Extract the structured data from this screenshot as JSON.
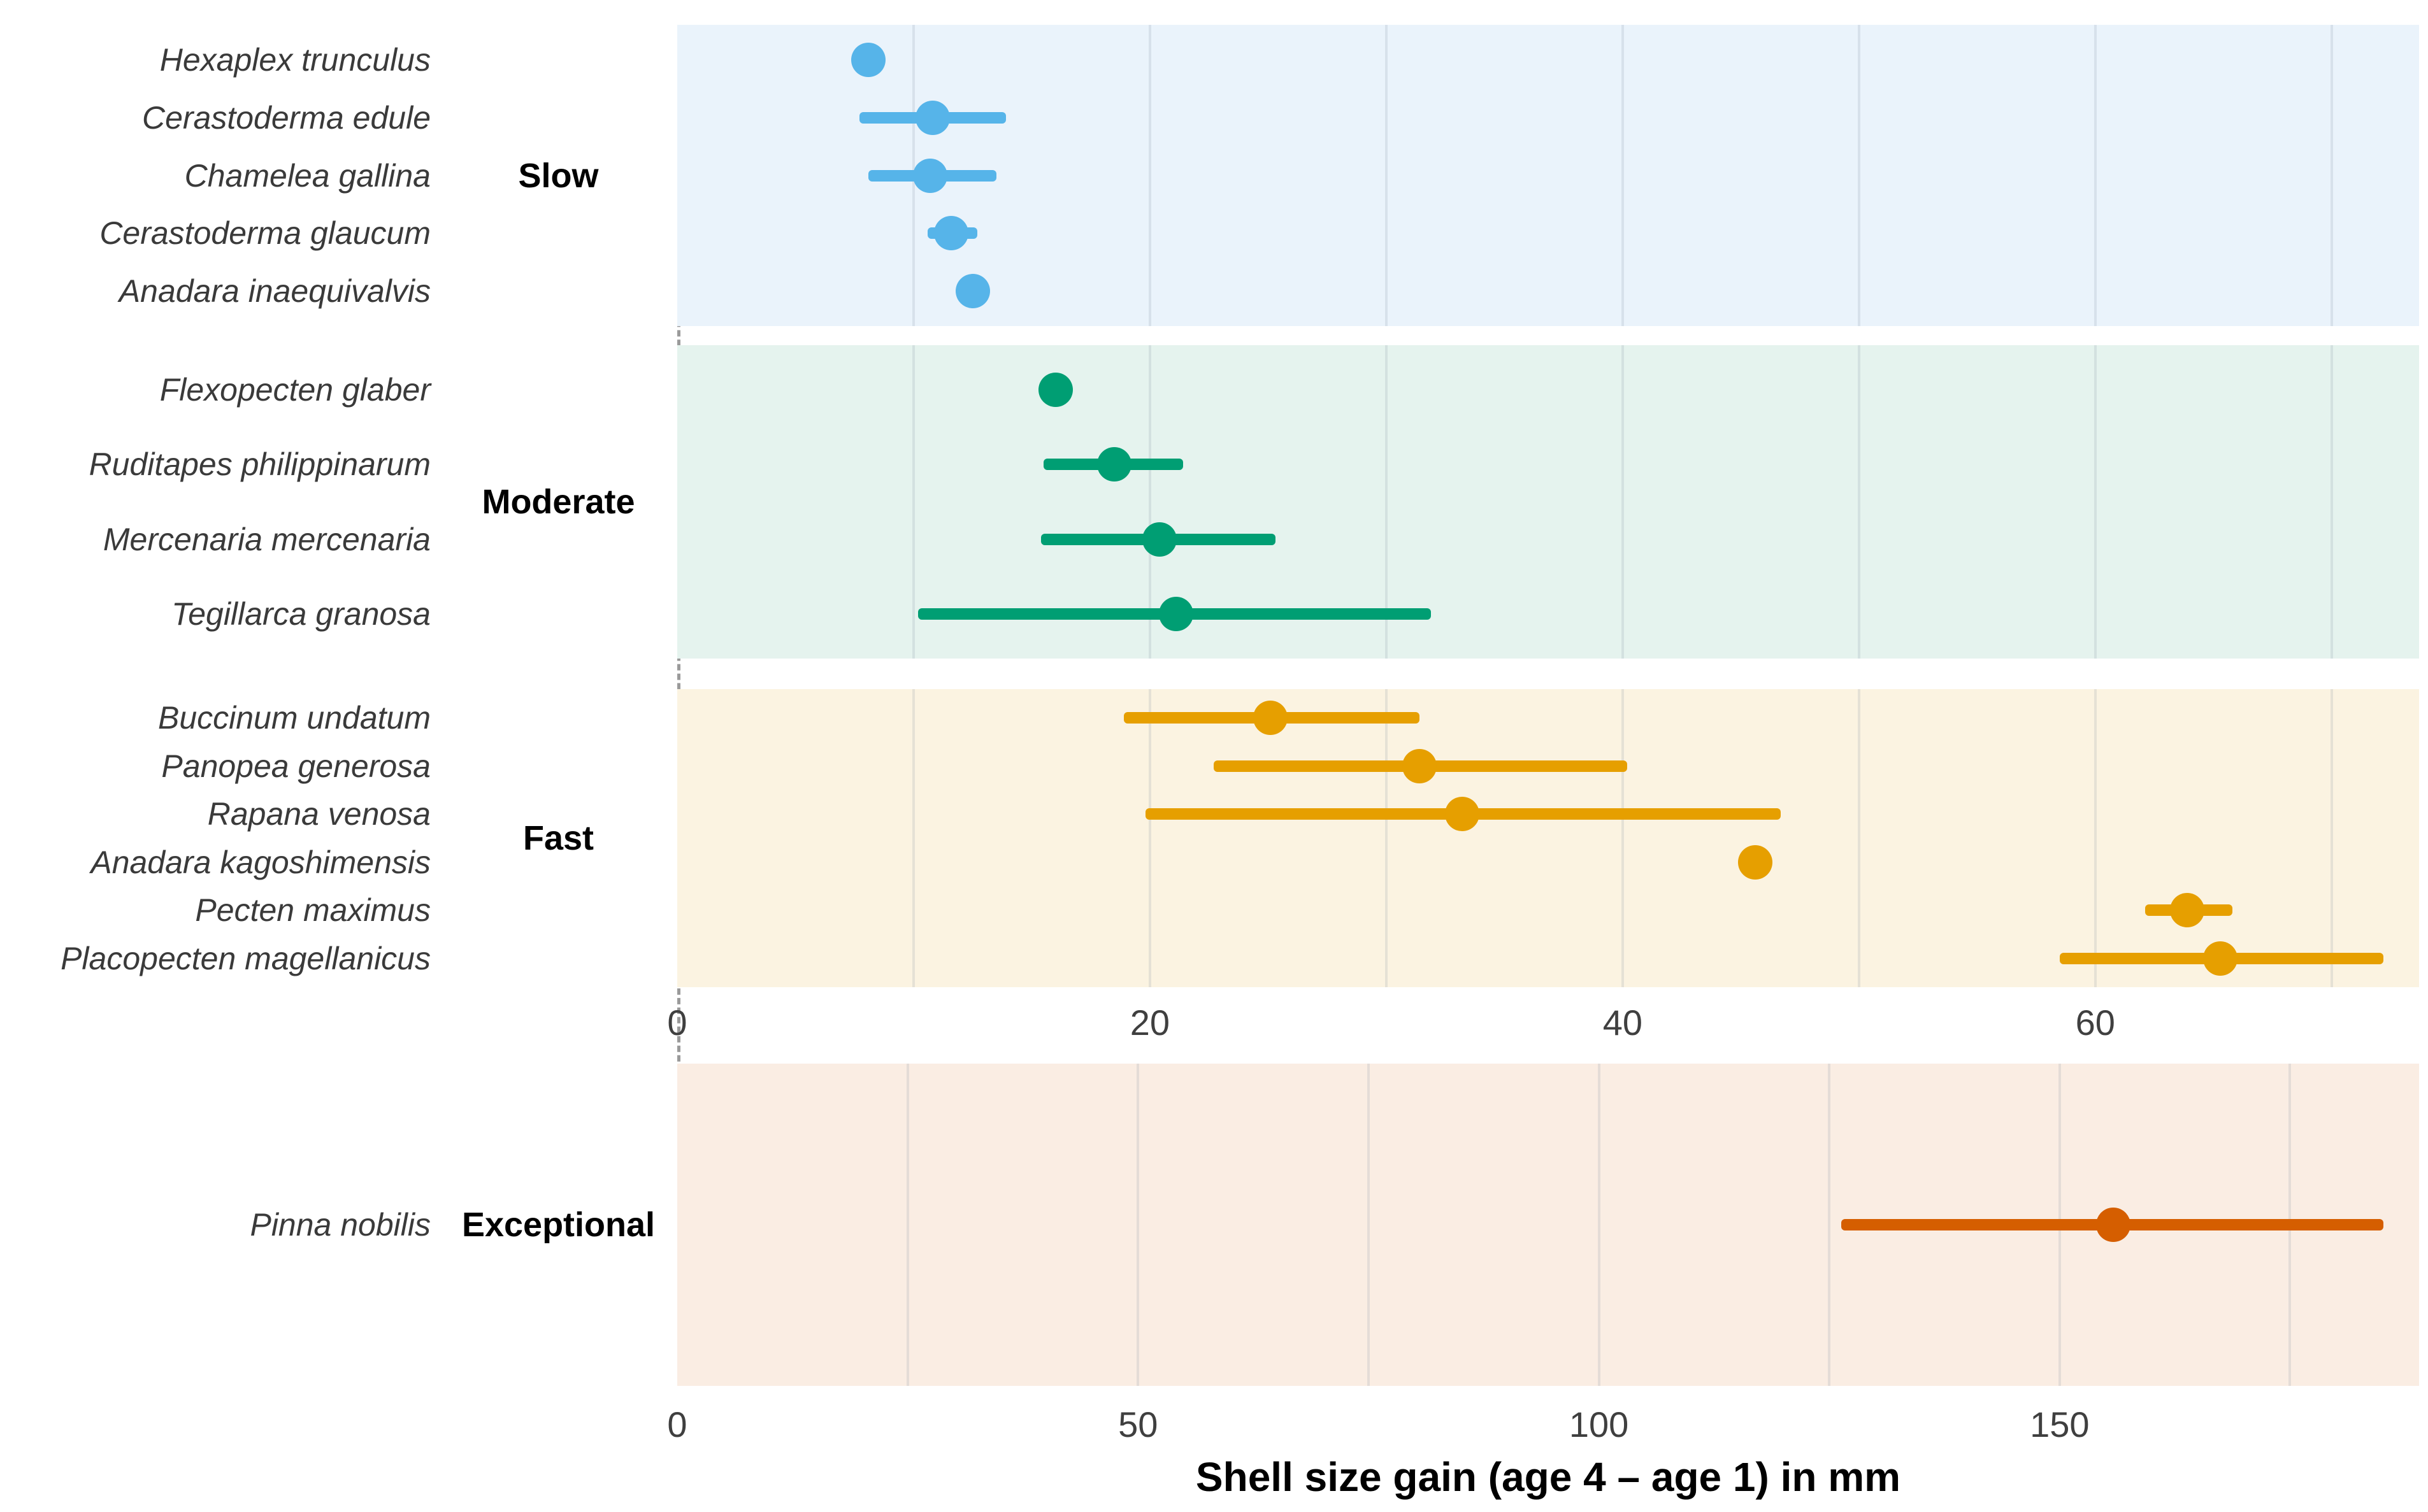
{
  "chart_data": {
    "type": "scatter",
    "subtype": "pointrange-dotplot-faceted",
    "title": "",
    "xlabel": "Shell size gain (age 4 – age 1) in mm",
    "legend": "none",
    "grid": "vertical-minor-on",
    "zero_reference_line": {
      "style": "dashed",
      "color": "#9a9a9a",
      "x": 0
    },
    "x_axes": [
      {
        "applies_to": [
          "Slow",
          "Moderate",
          "Fast"
        ],
        "ticks": [
          0,
          20,
          40,
          60
        ],
        "minor_step": 10,
        "max": 73.7,
        "unit": "mm"
      },
      {
        "applies_to": [
          "Exceptional"
        ],
        "ticks": [
          0,
          50,
          100,
          150
        ],
        "minor_step": 25,
        "max": 189,
        "unit": "mm"
      }
    ],
    "groups": [
      {
        "label": "Slow",
        "color": "#56B4E9",
        "panel_bg": "#EAF3FB",
        "axis": 0,
        "species": [
          {
            "name": "Hexaplex trunculus",
            "value": 8.1,
            "lo": null,
            "hi": null
          },
          {
            "name": "Cerastoderma edule",
            "value": 10.8,
            "lo": 7.7,
            "hi": 13.9
          },
          {
            "name": "Chamelea gallina",
            "value": 10.7,
            "lo": 8.1,
            "hi": 13.5
          },
          {
            "name": "Cerastoderma glaucum",
            "value": 11.6,
            "lo": 10.6,
            "hi": 12.7
          },
          {
            "name": "Anadara inaequivalvis",
            "value": 12.5,
            "lo": null,
            "hi": null
          }
        ]
      },
      {
        "label": "Moderate",
        "color": "#009E73",
        "panel_bg": "#E5F3EE",
        "axis": 0,
        "species": [
          {
            "name": "Flexopecten glaber",
            "value": 16.0,
            "lo": null,
            "hi": null
          },
          {
            "name": "Ruditapes philippinarum",
            "value": 18.5,
            "lo": 15.5,
            "hi": 21.4
          },
          {
            "name": "Mercenaria mercenaria",
            "value": 20.4,
            "lo": 15.4,
            "hi": 25.3
          },
          {
            "name": "Tegillarca granosa",
            "value": 21.1,
            "lo": 10.2,
            "hi": 31.9
          }
        ]
      },
      {
        "label": "Fast",
        "color": "#E69F00",
        "panel_bg": "#FBF3E1",
        "axis": 0,
        "species": [
          {
            "name": "Buccinum undatum",
            "value": 25.1,
            "lo": 18.9,
            "hi": 31.4
          },
          {
            "name": "Panopea generosa",
            "value": 31.4,
            "lo": 22.7,
            "hi": 40.2
          },
          {
            "name": "Rapana venosa",
            "value": 33.2,
            "lo": 19.8,
            "hi": 46.7
          },
          {
            "name": "Anadara kagoshimensis",
            "value": 45.6,
            "lo": null,
            "hi": null
          },
          {
            "name": "Pecten maximus",
            "value": 63.9,
            "lo": 62.1,
            "hi": 65.8
          },
          {
            "name": "Placopecten magellanicus",
            "value": 65.3,
            "lo": 58.5,
            "hi": 72.2
          }
        ]
      },
      {
        "label": "Exceptional",
        "color": "#D55E00",
        "panel_bg": "#FAEDE3",
        "axis": 1,
        "species": [
          {
            "name": "Pinna nobilis",
            "value": 155.8,
            "lo": 126.3,
            "hi": 185.1
          }
        ]
      }
    ]
  }
}
